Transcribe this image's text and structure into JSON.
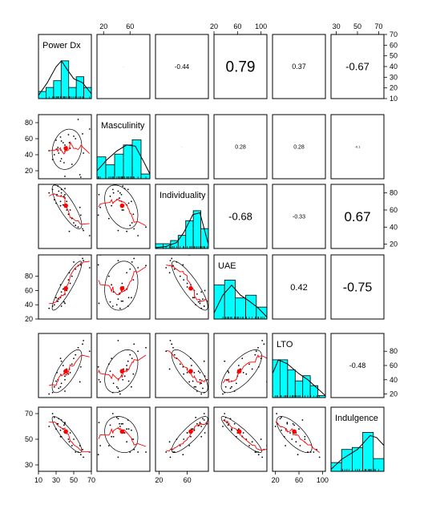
{
  "chart_data": {
    "type": "scatter-matrix",
    "variables": [
      "Power Dx",
      "Masculinity",
      "Individuality",
      "UAE",
      "LTO",
      "Indulgence"
    ],
    "ranges": [
      [
        10,
        70
      ],
      [
        10,
        90
      ],
      [
        15,
        90
      ],
      [
        20,
        110
      ],
      [
        15,
        105
      ],
      [
        25,
        75
      ]
    ],
    "axis_ticks": {
      "top": [
        [],
        [
          20,
          60
        ],
        [],
        [
          20,
          60,
          100
        ],
        [],
        [
          30,
          50,
          70
        ]
      ],
      "bottom": [
        [
          10,
          30,
          50,
          70
        ],
        [],
        [
          20,
          60
        ],
        [],
        [
          20,
          60,
          100
        ],
        []
      ],
      "left": [
        [],
        [
          20,
          40,
          60,
          80
        ],
        [],
        [
          20,
          40,
          60,
          80
        ],
        [],
        [
          30,
          50,
          70
        ]
      ],
      "right": [
        [
          10,
          20,
          30,
          40,
          50,
          60,
          70
        ],
        [],
        [
          20,
          40,
          60,
          80
        ],
        [],
        [
          20,
          40,
          60,
          80
        ],
        []
      ]
    },
    "tick_labels": {
      "top": [
        [],
        [
          "20",
          "60"
        ],
        [],
        [
          "20",
          "60",
          "100"
        ],
        [],
        [
          "30",
          "50",
          "70"
        ]
      ],
      "bottom": [
        [
          "10",
          "30",
          "50",
          "70"
        ],
        [],
        [
          "20",
          "60"
        ],
        [],
        [
          "20",
          "60",
          "100"
        ],
        []
      ],
      "left": [
        [],
        [
          "20",
          "40",
          "60",
          "80"
        ],
        [],
        [
          "20",
          "40",
          "60",
          "80"
        ],
        [],
        [
          "30",
          "50",
          "70"
        ]
      ],
      "right": [
        [
          "10",
          "20",
          "30",
          "40",
          "50",
          "60",
          "70"
        ],
        [],
        [
          "20",
          "40",
          "60",
          "80"
        ],
        [],
        [
          "20",
          "40",
          "60",
          "80"
        ],
        []
      ]
    },
    "correlations": [
      {
        "row": 0,
        "col": 1,
        "text": "..",
        "size": 3
      },
      {
        "row": 0,
        "col": 2,
        "text": "-0.44",
        "size": 8
      },
      {
        "row": 0,
        "col": 3,
        "text": "0.79",
        "size": 19
      },
      {
        "row": 0,
        "col": 4,
        "text": "0.37",
        "size": 9
      },
      {
        "row": 0,
        "col": 5,
        "text": "-0.67",
        "size": 13
      },
      {
        "row": 1,
        "col": 2,
        "text": "..",
        "size": 3
      },
      {
        "row": 1,
        "col": 3,
        "text": "0.28",
        "size": 7
      },
      {
        "row": 1,
        "col": 4,
        "text": "0.28",
        "size": 7
      },
      {
        "row": 1,
        "col": 5,
        "text": "-0.1",
        "size": 4
      },
      {
        "row": 2,
        "col": 3,
        "text": "-0.68",
        "size": 13
      },
      {
        "row": 2,
        "col": 4,
        "text": "-0.33",
        "size": 7
      },
      {
        "row": 2,
        "col": 5,
        "text": "0.67",
        "size": 17
      },
      {
        "row": 3,
        "col": 4,
        "text": "0.42",
        "size": 11
      },
      {
        "row": 3,
        "col": 5,
        "text": "-0.75",
        "size": 16
      },
      {
        "row": 4,
        "col": 5,
        "text": "-0.48",
        "size": 9
      }
    ],
    "histograms": [
      [
        0.18,
        0.28,
        0.45,
        0.95,
        0.28,
        0.55,
        0.28
      ],
      [
        0.55,
        0.35,
        0.62,
        0.85,
        0.98,
        0.12
      ],
      [
        0.12,
        0.12,
        0.2,
        0.33,
        0.7,
        0.95,
        0.5
      ],
      [
        0.86,
        0.98,
        0.53,
        0.6,
        0.3
      ],
      [
        0.95,
        0.95,
        0.7,
        0.42,
        0.55,
        0.3,
        0.05
      ],
      [
        0.22,
        0.55,
        0.6,
        0.98,
        0.32
      ]
    ],
    "density_curves": [
      [
        [
          10,
          0.08
        ],
        [
          20,
          0.4
        ],
        [
          30,
          0.8
        ],
        [
          36,
          0.95
        ],
        [
          42,
          0.75
        ],
        [
          50,
          0.5
        ],
        [
          60,
          0.4
        ],
        [
          70,
          0.12
        ]
      ],
      [
        [
          10,
          0.2
        ],
        [
          25,
          0.48
        ],
        [
          40,
          0.7
        ],
        [
          55,
          0.85
        ],
        [
          68,
          0.82
        ],
        [
          80,
          0.45
        ],
        [
          90,
          0.12
        ]
      ],
      [
        [
          15,
          0.02
        ],
        [
          30,
          0.05
        ],
        [
          45,
          0.15
        ],
        [
          55,
          0.4
        ],
        [
          68,
          0.85
        ],
        [
          78,
          0.9
        ],
        [
          90,
          0.1
        ]
      ],
      [
        [
          20,
          0.15
        ],
        [
          35,
          0.6
        ],
        [
          50,
          0.85
        ],
        [
          65,
          0.6
        ],
        [
          80,
          0.45
        ],
        [
          95,
          0.28
        ],
        [
          110,
          0.05
        ]
      ],
      [
        [
          15,
          0.6
        ],
        [
          25,
          0.95
        ],
        [
          40,
          0.85
        ],
        [
          60,
          0.6
        ],
        [
          75,
          0.45
        ],
        [
          90,
          0.25
        ],
        [
          105,
          0.05
        ]
      ],
      [
        [
          25,
          0.05
        ],
        [
          35,
          0.3
        ],
        [
          50,
          0.55
        ],
        [
          62,
          0.9
        ],
        [
          68,
          0.85
        ],
        [
          75,
          0.65
        ]
      ]
    ],
    "points": [
      [
        68,
        72,
        30,
        92,
        80,
        40
      ],
      [
        57,
        15,
        63,
        110,
        37,
        45
      ],
      [
        40,
        52,
        85,
        60,
        45,
        55
      ],
      [
        35,
        62,
        70,
        50,
        30,
        57
      ],
      [
        31,
        47,
        78,
        45,
        50,
        62
      ],
      [
        40,
        44,
        74,
        55,
        24,
        62
      ],
      [
        35,
        32,
        65,
        68,
        70,
        52
      ],
      [
        40,
        13,
        78,
        42,
        40,
        63
      ],
      [
        45,
        55,
        35,
        85,
        55,
        48
      ],
      [
        50,
        63,
        45,
        100,
        70,
        50
      ],
      [
        55,
        84,
        40,
        95,
        85,
        40
      ],
      [
        60,
        66,
        38,
        105,
        90,
        42
      ],
      [
        22,
        45,
        80,
        35,
        20,
        60
      ],
      [
        30,
        58,
        68,
        50,
        38,
        58
      ],
      [
        28,
        40,
        72,
        40,
        30,
        67
      ],
      [
        36,
        35,
        80,
        58,
        35,
        52
      ],
      [
        42,
        50,
        60,
        65,
        55,
        55
      ],
      [
        48,
        28,
        50,
        80,
        62,
        45
      ],
      [
        44,
        65,
        55,
        75,
        48,
        50
      ],
      [
        33,
        42,
        82,
        48,
        28,
        66
      ],
      [
        38,
        55,
        66,
        62,
        60,
        58
      ],
      [
        32,
        49,
        88,
        45,
        40,
        62
      ],
      [
        52,
        60,
        42,
        90,
        75,
        40
      ],
      [
        46,
        48,
        60,
        70,
        50,
        55
      ],
      [
        58,
        12,
        54,
        96,
        58,
        38
      ],
      [
        26,
        34,
        84,
        38,
        22,
        70
      ],
      [
        39,
        30,
        76,
        44,
        52,
        61
      ],
      [
        61,
        42,
        36,
        102,
        95,
        36
      ],
      [
        42,
        47,
        70,
        60,
        50,
        57
      ],
      [
        36,
        57,
        84,
        38,
        66,
        65
      ]
    ],
    "means": [
      41,
      48,
      65,
      63,
      52,
      56
    ],
    "colors": {
      "hist_fill": "#00ffff",
      "mean_point": "#ff0000",
      "smooth": "#ff0000",
      "density": "#000000"
    }
  }
}
